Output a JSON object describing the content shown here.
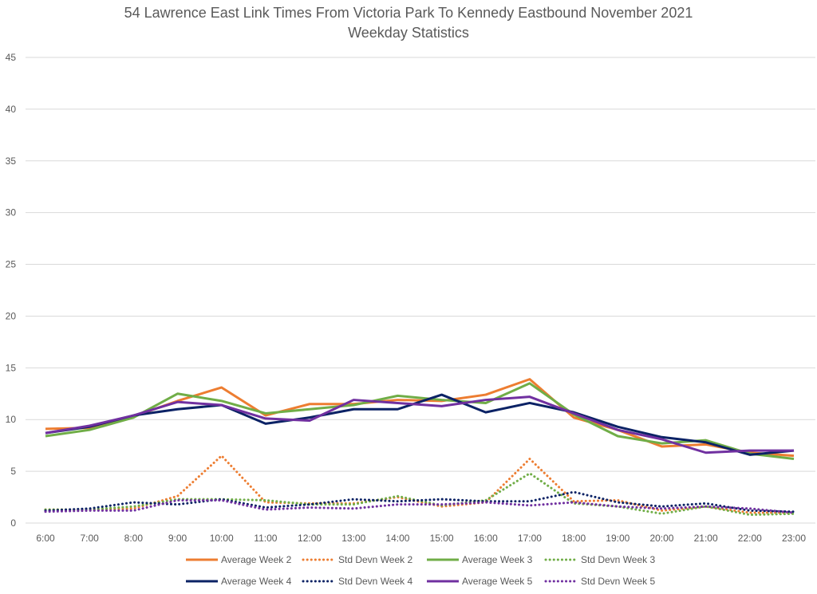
{
  "chart_data": {
    "type": "line",
    "title": "54 Lawrence East Link Times From Victoria Park To Kennedy Eastbound November 2021",
    "subtitle": "Weekday Statistics",
    "xlabel": "",
    "ylabel": "",
    "ylim": [
      0,
      45
    ],
    "yticks": [
      0,
      5,
      10,
      15,
      20,
      25,
      30,
      35,
      40,
      45
    ],
    "grid": true,
    "legend_position": "bottom",
    "categories": [
      "6:00",
      "7:00",
      "8:00",
      "9:00",
      "10:00",
      "11:00",
      "12:00",
      "13:00",
      "14:00",
      "15:00",
      "16:00",
      "17:00",
      "18:00",
      "19:00",
      "20:00",
      "21:00",
      "22:00",
      "23:00"
    ],
    "series": [
      {
        "name": "Average Week 2",
        "color": "#ED7D31",
        "style": "solid",
        "values": [
          9.1,
          9.2,
          10.3,
          11.8,
          13.1,
          10.4,
          11.5,
          11.5,
          11.9,
          11.8,
          12.4,
          13.9,
          10.2,
          9.0,
          7.4,
          7.6,
          6.8,
          6.5
        ]
      },
      {
        "name": "Std Devn Week 2",
        "color": "#ED7D31",
        "style": "dotted",
        "values": [
          1.3,
          1.3,
          1.4,
          2.6,
          6.5,
          2.0,
          1.9,
          1.9,
          2.5,
          1.6,
          2.0,
          6.2,
          2.1,
          2.2,
          1.2,
          1.6,
          1.0,
          1.0
        ]
      },
      {
        "name": "Average Week 3",
        "color": "#70AD47",
        "style": "solid",
        "values": [
          8.4,
          9.0,
          10.2,
          12.5,
          11.8,
          10.6,
          11.0,
          11.4,
          12.3,
          11.9,
          11.6,
          13.5,
          10.5,
          8.4,
          7.7,
          8.0,
          6.7,
          6.2
        ]
      },
      {
        "name": "Std Devn Week 3",
        "color": "#70AD47",
        "style": "dotted",
        "values": [
          1.3,
          1.3,
          1.6,
          2.3,
          2.3,
          2.2,
          1.8,
          1.8,
          2.6,
          1.7,
          2.2,
          4.8,
          1.9,
          1.6,
          0.9,
          1.6,
          0.8,
          0.9
        ]
      },
      {
        "name": "Average Week 4",
        "color": "#0B2265",
        "style": "solid",
        "values": [
          8.7,
          9.3,
          10.4,
          11.0,
          11.4,
          9.6,
          10.2,
          11.0,
          11.0,
          12.4,
          10.7,
          11.6,
          10.7,
          9.3,
          8.3,
          7.8,
          6.6,
          7.0
        ]
      },
      {
        "name": "Std Devn Week 4",
        "color": "#0B2265",
        "style": "dotted",
        "values": [
          1.2,
          1.4,
          2.0,
          1.8,
          2.3,
          1.5,
          1.8,
          2.3,
          2.1,
          2.3,
          2.1,
          2.1,
          3.0,
          2.0,
          1.6,
          1.9,
          1.2,
          1.1
        ]
      },
      {
        "name": "Average Week 5",
        "color": "#7030A0",
        "style": "solid",
        "values": [
          8.7,
          9.4,
          10.4,
          11.7,
          11.4,
          10.1,
          9.9,
          11.9,
          11.6,
          11.3,
          11.9,
          12.2,
          10.6,
          9.0,
          8.1,
          6.8,
          7.0,
          7.0
        ]
      },
      {
        "name": "Std Devn Week 5",
        "color": "#7030A0",
        "style": "dotted",
        "values": [
          1.1,
          1.2,
          1.2,
          2.2,
          2.2,
          1.3,
          1.5,
          1.4,
          1.8,
          1.8,
          2.0,
          1.7,
          2.0,
          1.6,
          1.4,
          1.6,
          1.4,
          1.0
        ]
      }
    ]
  }
}
